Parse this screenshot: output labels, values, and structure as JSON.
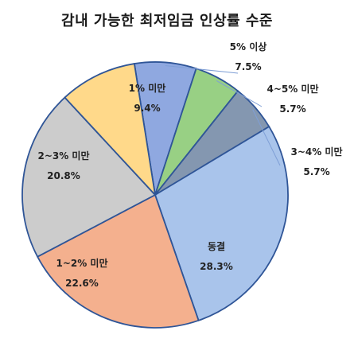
{
  "chart_data": {
    "type": "pie",
    "title": "감내 가능한 최저임금 인상률 수준",
    "slices": [
      {
        "name": "5% 이상",
        "value": 7.5,
        "label": "7.5%",
        "color": "#8FA8E0"
      },
      {
        "name": "4~5% 미만",
        "value": 5.7,
        "label": "5.7%",
        "color": "#98D084"
      },
      {
        "name": "3~4% 미만",
        "value": 5.7,
        "label": "5.7%",
        "color": "#8497B0"
      },
      {
        "name": "동결",
        "value": 28.3,
        "label": "28.3%",
        "color": "#A9C4EB"
      },
      {
        "name": "1~2% 미만",
        "value": 22.6,
        "label": "22.6%",
        "color": "#F4B08E"
      },
      {
        "name": "2~3% 미만",
        "value": 20.8,
        "label": "20.8%",
        "color": "#CCCCCC"
      },
      {
        "name": "1% 미만",
        "value": 9.4,
        "label": "9.4%",
        "color": "#FFD98A"
      }
    ],
    "edge_color": "#2F5597"
  }
}
